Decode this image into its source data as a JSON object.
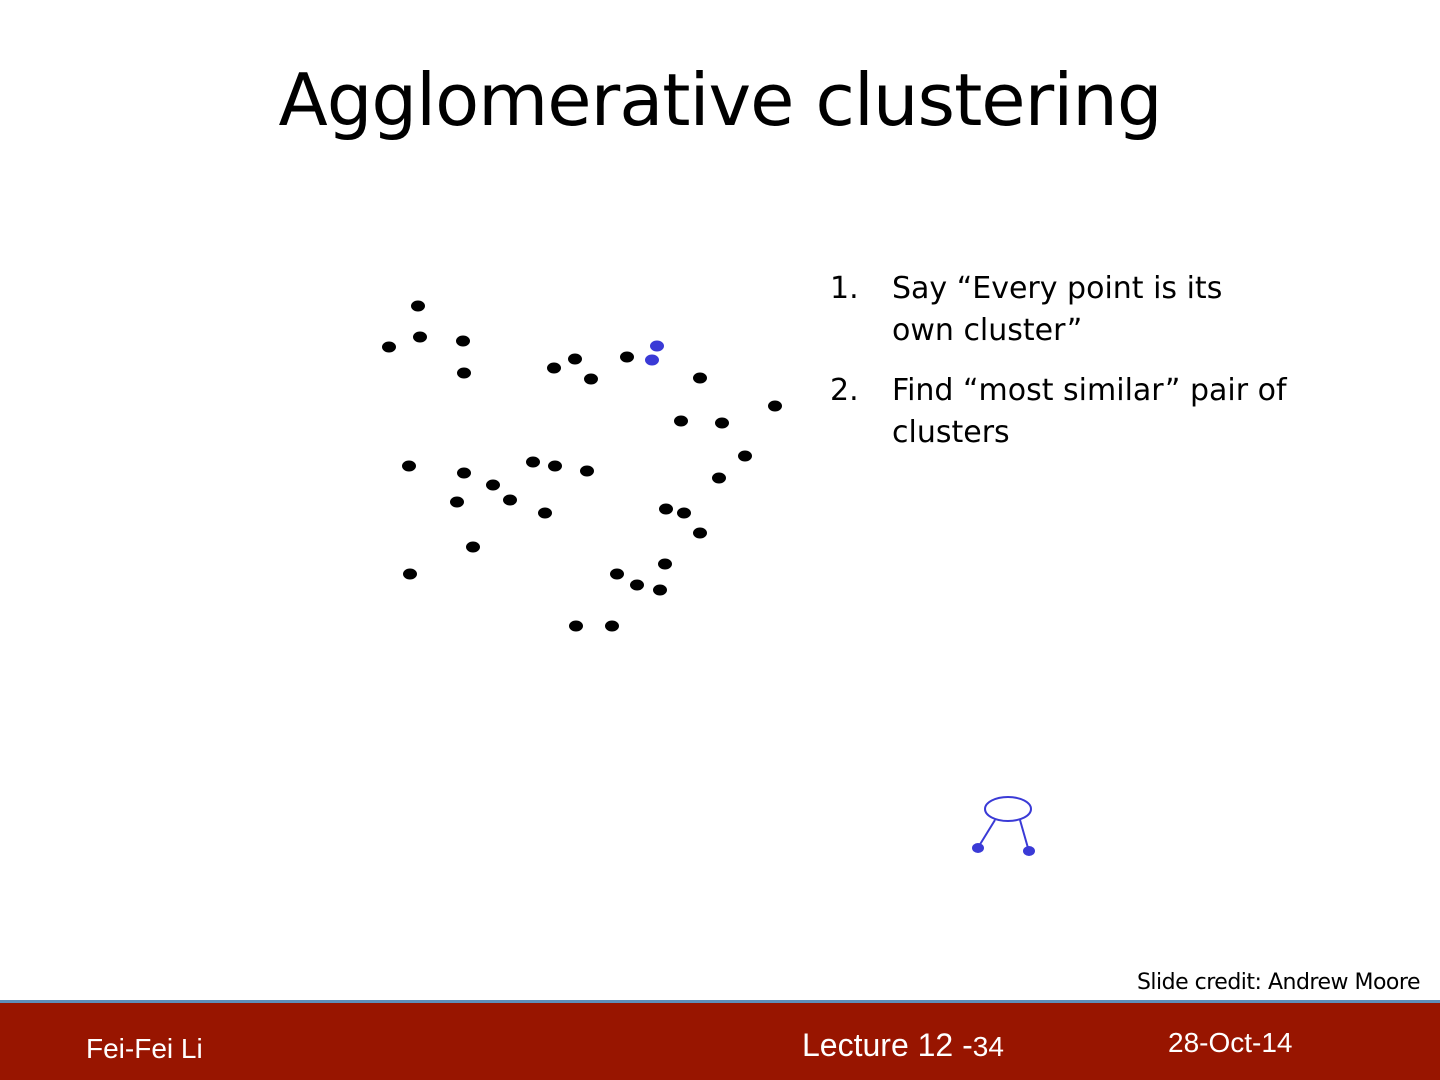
{
  "slide": {
    "title": "Agglomerative clustering",
    "steps": [
      {
        "number": "1.",
        "text": "Say “Every point is its own cluster”"
      },
      {
        "number": "2.",
        "text": "Find “most similar” pair of clusters"
      }
    ],
    "credit": "Slide credit: Andrew Moore"
  },
  "colors": {
    "point": "#000000",
    "highlight": "#3a3ad6",
    "footer_bg": "#981500",
    "footer_border": "#5e8fba"
  },
  "footer": {
    "author": "Fei-Fei Li",
    "lecture": "Lecture 12 -",
    "page": "34",
    "date": "28-Oct-14"
  }
}
